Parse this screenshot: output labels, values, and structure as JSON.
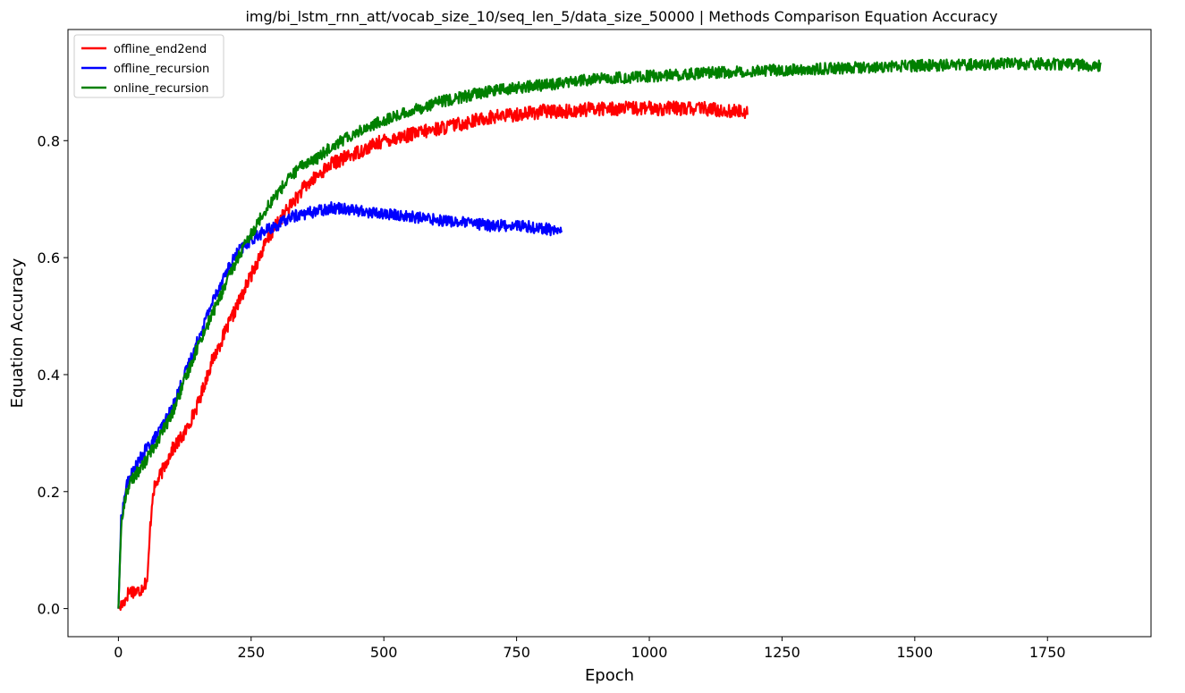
{
  "chart_data": {
    "type": "line",
    "title": "img/bi_lstm_rnn_att/vocab_size_10/seq_len_5/data_size_50000 | Methods Comparison Equation Accuracy",
    "xlabel": "Epoch",
    "ylabel": "Equation Accuracy",
    "xlim": [
      -95,
      1945
    ],
    "ylim": [
      -0.048,
      0.99
    ],
    "xticks": [
      0,
      250,
      500,
      750,
      1000,
      1250,
      1500,
      1750
    ],
    "xtick_labels": [
      "0",
      "250",
      "500",
      "750",
      "1000",
      "1250",
      "1500",
      "1750"
    ],
    "yticks": [
      0.0,
      0.2,
      0.4,
      0.6,
      0.8
    ],
    "ytick_labels": [
      "0.0",
      "0.2",
      "0.4",
      "0.6",
      "0.8"
    ],
    "grid": false,
    "legend": "top-left",
    "series": [
      {
        "name": "offline_end2end",
        "color": "#ff0000",
        "x": [
          0,
          10,
          20,
          40,
          55,
          60,
          65,
          75,
          90,
          100,
          125,
          150,
          175,
          200,
          225,
          250,
          275,
          300,
          325,
          350,
          375,
          400,
          450,
          500,
          550,
          600,
          650,
          700,
          750,
          800,
          850,
          900,
          950,
          1000,
          1050,
          1100,
          1150,
          1185
        ],
        "y": [
          0.0,
          0.01,
          0.03,
          0.03,
          0.05,
          0.14,
          0.2,
          0.22,
          0.25,
          0.27,
          0.3,
          0.35,
          0.42,
          0.47,
          0.52,
          0.57,
          0.62,
          0.66,
          0.69,
          0.72,
          0.74,
          0.76,
          0.78,
          0.8,
          0.81,
          0.82,
          0.83,
          0.84,
          0.845,
          0.85,
          0.85,
          0.855,
          0.855,
          0.855,
          0.855,
          0.855,
          0.85,
          0.85
        ],
        "noise": 0.012
      },
      {
        "name": "offline_recursion",
        "color": "#0000ff",
        "x": [
          0,
          5,
          15,
          25,
          50,
          75,
          100,
          125,
          150,
          175,
          200,
          225,
          250,
          275,
          300,
          325,
          350,
          375,
          400,
          425,
          450,
          500,
          550,
          600,
          650,
          700,
          750,
          800,
          835
        ],
        "y": [
          0.0,
          0.15,
          0.21,
          0.23,
          0.27,
          0.3,
          0.34,
          0.4,
          0.46,
          0.52,
          0.57,
          0.61,
          0.63,
          0.645,
          0.655,
          0.67,
          0.675,
          0.68,
          0.685,
          0.685,
          0.68,
          0.675,
          0.67,
          0.665,
          0.66,
          0.655,
          0.655,
          0.65,
          0.645
        ],
        "noise": 0.01
      },
      {
        "name": "online_recursion",
        "color": "#008000",
        "x": [
          0,
          5,
          15,
          25,
          50,
          75,
          100,
          125,
          150,
          175,
          200,
          225,
          250,
          275,
          300,
          325,
          350,
          375,
          400,
          450,
          500,
          550,
          600,
          650,
          700,
          750,
          800,
          900,
          1000,
          1100,
          1200,
          1300,
          1400,
          1500,
          1600,
          1700,
          1800,
          1850
        ],
        "y": [
          0.0,
          0.14,
          0.2,
          0.22,
          0.25,
          0.29,
          0.33,
          0.39,
          0.45,
          0.5,
          0.55,
          0.6,
          0.64,
          0.68,
          0.71,
          0.74,
          0.76,
          0.77,
          0.79,
          0.815,
          0.835,
          0.85,
          0.865,
          0.875,
          0.885,
          0.89,
          0.895,
          0.905,
          0.91,
          0.915,
          0.92,
          0.922,
          0.925,
          0.928,
          0.93,
          0.932,
          0.93,
          0.928
        ],
        "noise": 0.01
      }
    ]
  }
}
